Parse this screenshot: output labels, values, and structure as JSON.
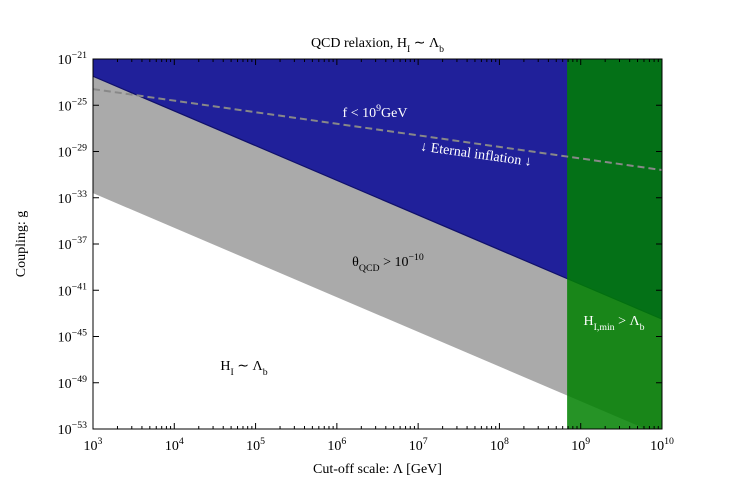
{
  "chart_data": {
    "type": "regions",
    "title": [
      "QCD relaxion, H",
      {
        "sub": "I"
      },
      " ∼ Λ",
      {
        "sub": "b"
      }
    ],
    "xlabel": "Cut-off scale: Λ [GeV]",
    "ylabel": "Coupling: g",
    "xscale": "log",
    "yscale": "log",
    "xlim": [
      1000,
      10000000000
    ],
    "ylim": [
      1e-53,
      1e-21
    ],
    "xticks": [
      {
        "value": 1000,
        "label": [
          "10",
          {
            "sup": "3"
          }
        ]
      },
      {
        "value": 10000,
        "label": [
          "10",
          {
            "sup": "4"
          }
        ]
      },
      {
        "value": 100000,
        "label": [
          "10",
          {
            "sup": "5"
          }
        ]
      },
      {
        "value": 1000000,
        "label": [
          "10",
          {
            "sup": "6"
          }
        ]
      },
      {
        "value": 10000000,
        "label": [
          "10",
          {
            "sup": "7"
          }
        ]
      },
      {
        "value": 100000000,
        "label": [
          "10",
          {
            "sup": "8"
          }
        ]
      },
      {
        "value": 1000000000,
        "label": [
          "10",
          {
            "sup": "9"
          }
        ]
      },
      {
        "value": 10000000000,
        "label": [
          "10",
          {
            "sup": "10"
          }
        ]
      }
    ],
    "yticks": [
      {
        "value": 1e-21,
        "label": [
          "10",
          {
            "sup": "−21"
          }
        ]
      },
      {
        "value": 1e-25,
        "label": [
          "10",
          {
            "sup": "−25"
          }
        ]
      },
      {
        "value": 1e-29,
        "label": [
          "10",
          {
            "sup": "−29"
          }
        ]
      },
      {
        "value": 1e-33,
        "label": [
          "10",
          {
            "sup": "−33"
          }
        ]
      },
      {
        "value": 1e-37,
        "label": [
          "10",
          {
            "sup": "−37"
          }
        ]
      },
      {
        "value": 1e-41,
        "label": [
          "10",
          {
            "sup": "−41"
          }
        ]
      },
      {
        "value": 1e-45,
        "label": [
          "10",
          {
            "sup": "−45"
          }
        ]
      },
      {
        "value": 1e-49,
        "label": [
          "10",
          {
            "sup": "−49"
          }
        ]
      },
      {
        "value": 1e-53,
        "label": [
          "10",
          {
            "sup": "−53"
          }
        ]
      }
    ],
    "layers": [
      {
        "fill": "above",
        "color": "#aaaaaa",
        "x": [
          1000,
          10000000000
        ],
        "y": [
          2.5e-33,
          2.5e-54
        ]
      },
      {
        "fill": "above",
        "color": "#20209a",
        "edge": "#10106a",
        "x": [
          1000,
          10000000000
        ],
        "y": [
          3.2e-23,
          3.2e-44
        ]
      },
      {
        "fill": "right",
        "color": "#008000",
        "opacity": 0.85,
        "x": [
          680000000
        ]
      },
      {
        "fill": "none",
        "color": "#888888",
        "dashed": true,
        "x": [
          1000,
          10000000000
        ],
        "y": [
          2.5e-24,
          2.5e-31
        ]
      }
    ],
    "annotations": [
      {
        "text": [
          "f < 10",
          {
            "sup": "9"
          },
          "GeV"
        ],
        "color": "#ffffff"
      },
      {
        "text": "↓ Eternal inflation ↓",
        "color": "#ffffff"
      },
      {
        "text": [
          "θ",
          {
            "sub": "QCD"
          },
          " > 10",
          {
            "sup": "−10"
          }
        ],
        "color": "#000000"
      },
      {
        "text": [
          "H",
          {
            "sub": "I"
          },
          " ∼ Λ",
          {
            "sub": "b"
          }
        ],
        "color": "#000000"
      },
      {
        "text": [
          "H",
          {
            "sub": "I,min"
          },
          " > Λ",
          {
            "sub": "b"
          }
        ],
        "color": "#ffffff"
      }
    ]
  }
}
